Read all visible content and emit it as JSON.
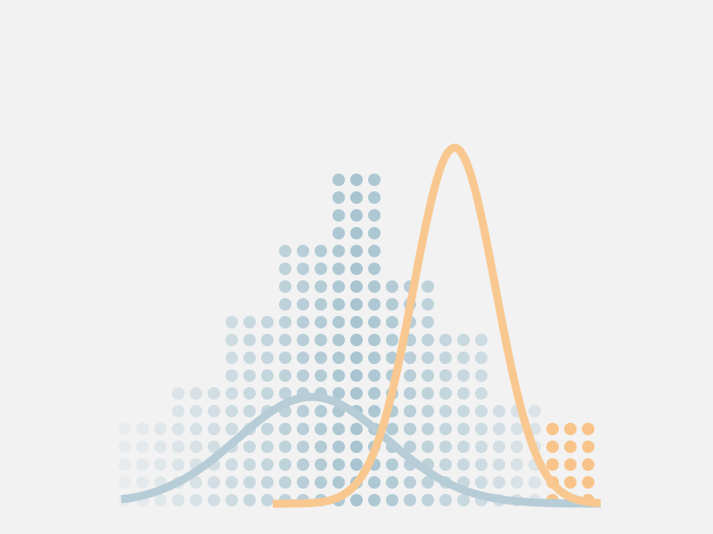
{
  "chart_data": {
    "type": "histogram",
    "title": "",
    "xlabel": "",
    "ylabel": "",
    "grid": false,
    "legend": "none",
    "bins": [
      1,
      2,
      3,
      4,
      5,
      6,
      7,
      8,
      9,
      10,
      11,
      12,
      13,
      14,
      15,
      16,
      17,
      18,
      19,
      20,
      21,
      22,
      23,
      24,
      25,
      26,
      27
    ],
    "series": [
      {
        "kind": "dot-histogram",
        "counts": [
          5,
          5,
          5,
          7,
          7,
          7,
          11,
          11,
          11,
          15,
          15,
          15,
          19,
          19,
          19,
          13,
          13,
          13,
          10,
          10,
          10,
          6,
          6,
          6,
          5,
          5,
          5
        ],
        "colors": {
          "low": "#e8ecee",
          "mid": "#a8c4d0",
          "highlight": "#f8c48a"
        },
        "highlighted_bins": [
          25,
          26,
          27
        ]
      },
      {
        "kind": "density-curve",
        "color": "#b6ccd6",
        "mean": 11.5,
        "sd": 4.2,
        "peak_rows": 7,
        "x_range": [
          1,
          27.5
        ]
      },
      {
        "kind": "density-curve",
        "color": "#f8c890",
        "mean": 19.5,
        "sd": 2.3,
        "peak_rows": 21,
        "x_range": [
          9.5,
          27.5
        ]
      }
    ]
  }
}
